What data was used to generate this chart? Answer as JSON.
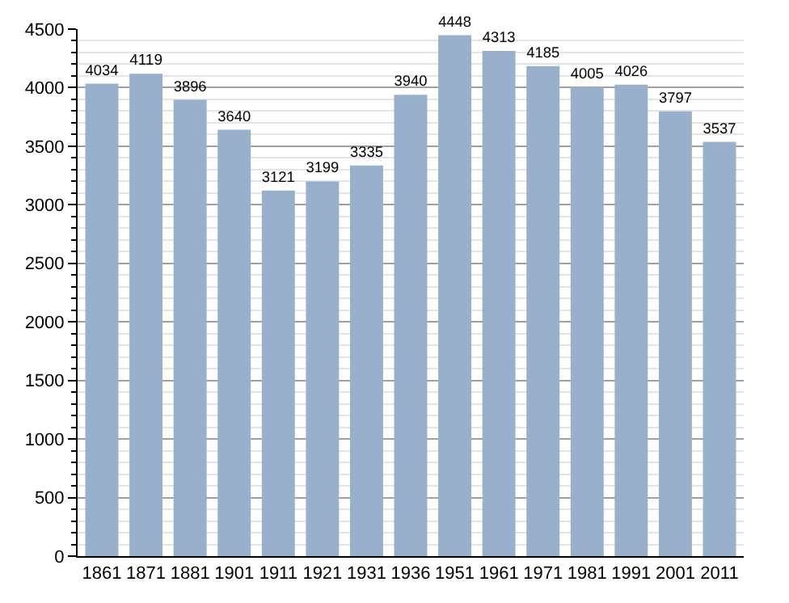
{
  "chart_data": {
    "type": "bar",
    "categories": [
      "1861",
      "1871",
      "1881",
      "1901",
      "1911",
      "1921",
      "1931",
      "1936",
      "1951",
      "1961",
      "1971",
      "1981",
      "1991",
      "2001",
      "2011"
    ],
    "values": [
      4034,
      4119,
      3896,
      3640,
      3121,
      3199,
      3335,
      3940,
      4448,
      4313,
      4185,
      4005,
      4026,
      3797,
      3537
    ],
    "color": "#98b0cc",
    "ylim": [
      0,
      4500
    ],
    "yticks": [
      0,
      500,
      1000,
      1500,
      2000,
      2500,
      3000,
      3500,
      4000,
      4500
    ],
    "grid": "y",
    "data_labels": true
  }
}
